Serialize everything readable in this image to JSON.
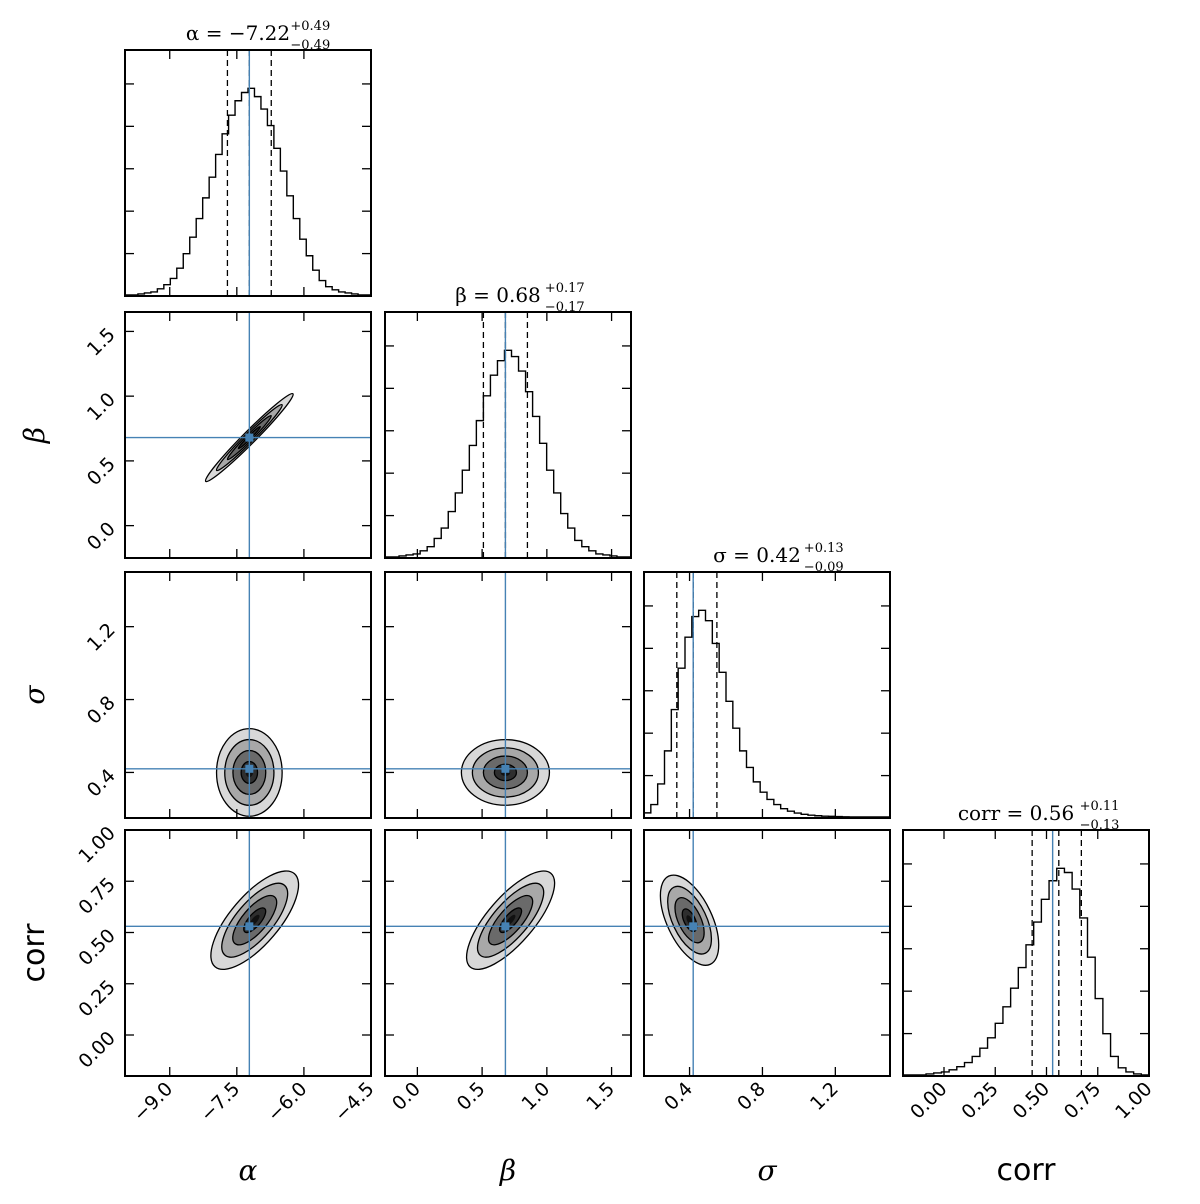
{
  "figure_type": "corner plot",
  "colors": {
    "truth": "#4682b4",
    "hist": "#000000",
    "frame": "#000000"
  },
  "chart_data": {
    "type": "corner",
    "parameters": [
      {
        "key": "alpha",
        "label": "α",
        "label_style": "italic",
        "range": [
          -10.0,
          -4.5
        ],
        "ticks": [
          -9.0,
          -7.5,
          -6.0,
          -4.5
        ],
        "tick_labels": [
          "−9.0",
          "−7.5",
          "−6.0",
          "−4.5"
        ],
        "median": -7.22,
        "q_minus": -7.71,
        "q_plus": -6.73,
        "truth": -7.22,
        "title_lhs": "α = −7.22",
        "err_plus": "+0.49",
        "err_minus": "−0.49",
        "hist": [
          0.0,
          0.0,
          0.005,
          0.01,
          0.015,
          0.03,
          0.05,
          0.08,
          0.13,
          0.2,
          0.28,
          0.37,
          0.47,
          0.57,
          0.68,
          0.78,
          0.87,
          0.94,
          0.98,
          1.0,
          0.96,
          0.9,
          0.82,
          0.71,
          0.6,
          0.48,
          0.37,
          0.27,
          0.19,
          0.12,
          0.07,
          0.04,
          0.025,
          0.015,
          0.01,
          0.005,
          0.0,
          0.0
        ]
      },
      {
        "key": "beta",
        "label": "β",
        "label_style": "italic",
        "range": [
          -0.25,
          1.65
        ],
        "ticks": [
          0.0,
          0.5,
          1.0,
          1.5
        ],
        "tick_labels": [
          "0.0",
          "0.5",
          "1.0",
          "1.5"
        ],
        "median": 0.68,
        "q_minus": 0.51,
        "q_plus": 0.85,
        "truth": 0.68,
        "title_lhs": "β = 0.68",
        "err_plus": "+0.17",
        "err_minus": "−0.17",
        "hist": [
          0.0,
          0.0,
          0.005,
          0.01,
          0.015,
          0.03,
          0.05,
          0.09,
          0.14,
          0.22,
          0.31,
          0.42,
          0.54,
          0.66,
          0.78,
          0.88,
          0.95,
          1.0,
          0.97,
          0.9,
          0.8,
          0.68,
          0.55,
          0.42,
          0.31,
          0.21,
          0.14,
          0.08,
          0.05,
          0.03,
          0.015,
          0.01,
          0.005,
          0.0,
          0.0
        ]
      },
      {
        "key": "sigma",
        "label": "σ",
        "label_style": "italic",
        "range": [
          0.15,
          1.5
        ],
        "ticks": [
          0.4,
          0.8,
          1.2
        ],
        "tick_labels": [
          "0.4",
          "0.8",
          "1.2"
        ],
        "median": 0.42,
        "q_minus": 0.33,
        "q_plus": 0.55,
        "truth": 0.42,
        "title_lhs": "σ = 0.42",
        "err_plus": "+0.13",
        "err_minus": "−0.09",
        "hist": [
          0.02,
          0.06,
          0.16,
          0.32,
          0.52,
          0.72,
          0.87,
          0.97,
          1.0,
          0.95,
          0.84,
          0.7,
          0.56,
          0.43,
          0.32,
          0.24,
          0.17,
          0.12,
          0.085,
          0.06,
          0.04,
          0.028,
          0.019,
          0.013,
          0.009,
          0.006,
          0.004,
          0.003,
          0.002,
          0.001,
          0.0,
          0.0,
          0.0,
          0.0,
          0.0,
          0.0
        ]
      },
      {
        "key": "corr",
        "label": "corr",
        "label_style": "sans",
        "range": [
          -0.2,
          1.0
        ],
        "ticks": [
          0.0,
          0.25,
          0.5,
          0.75,
          1.0
        ],
        "tick_labels": [
          "0.00",
          "0.25",
          "0.50",
          "0.75",
          "1.00"
        ],
        "median": 0.56,
        "q_minus": 0.43,
        "q_plus": 0.67,
        "truth": 0.53,
        "title_lhs": "corr = 0.56",
        "err_plus": "+0.11",
        "err_minus": "−0.13",
        "hist": [
          0.0,
          0.0,
          0.0,
          0.005,
          0.01,
          0.015,
          0.025,
          0.04,
          0.06,
          0.09,
          0.13,
          0.18,
          0.25,
          0.33,
          0.42,
          0.52,
          0.63,
          0.74,
          0.85,
          0.94,
          1.0,
          0.98,
          0.9,
          0.76,
          0.57,
          0.37,
          0.2,
          0.09,
          0.035,
          0.015,
          0.005,
          0.0
        ]
      }
    ],
    "pairs": [
      {
        "x": "alpha",
        "y": "beta",
        "mean": [
          -7.22,
          0.68
        ],
        "sd": [
          0.49,
          0.17
        ],
        "rho": 0.98
      },
      {
        "x": "alpha",
        "y": "sigma",
        "mean": [
          -7.22,
          0.4
        ],
        "sd": [
          0.49,
          0.09
        ],
        "rho": 0.0
      },
      {
        "x": "beta",
        "y": "sigma",
        "mean": [
          0.68,
          0.4
        ],
        "sd": [
          0.17,
          0.09
        ],
        "rho": 0.0
      },
      {
        "x": "alpha",
        "y": "corr",
        "mean": [
          -7.1,
          0.56
        ],
        "sd": [
          0.49,
          0.12
        ],
        "rho": 0.72
      },
      {
        "x": "beta",
        "y": "corr",
        "mean": [
          0.72,
          0.56
        ],
        "sd": [
          0.17,
          0.12
        ],
        "rho": 0.75
      },
      {
        "x": "sigma",
        "y": "corr",
        "mean": [
          0.4,
          0.56
        ],
        "sd": [
          0.08,
          0.11
        ],
        "rho": -0.55
      }
    ],
    "contour_levels": [
      0.5,
      1.0,
      1.5,
      2.0
    ]
  }
}
